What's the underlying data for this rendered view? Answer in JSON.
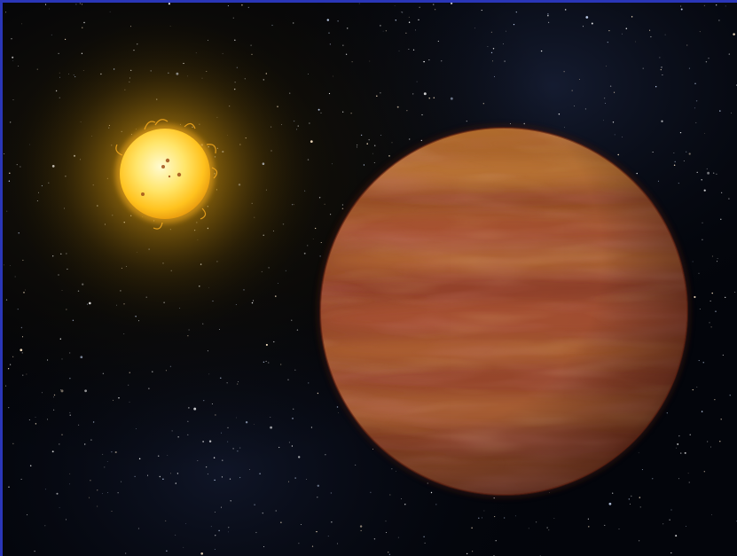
{
  "scene": {
    "subject": "star-and-gas-giant",
    "colors": {
      "frame": "#2a36b8",
      "space": "#04060c",
      "nebula": "#1a2338",
      "star_core": "#fff7b0",
      "star_mid": "#ffd23a",
      "star_edge": "#f0a010",
      "star_glow": "#c88a00",
      "planet_light": "#c8782e",
      "planet_mid": "#9a4a2a",
      "planet_dark": "#4a1a12",
      "planet_band": "#b0402e",
      "sunspot": "#a0521a"
    }
  }
}
